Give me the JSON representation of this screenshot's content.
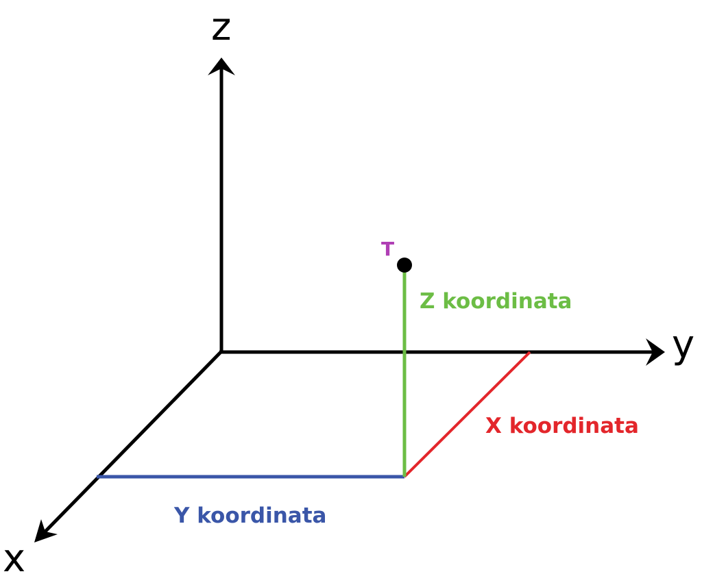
{
  "axes": {
    "x_label": "x",
    "y_label": "y",
    "z_label": "z"
  },
  "point": {
    "label": "T"
  },
  "coordinates": {
    "x_label": "X koordinata",
    "y_label": "Y koordinata",
    "z_label": "Z koordinata"
  },
  "colors": {
    "axes": "#000000",
    "x_coordinate": "#e3262b",
    "y_coordinate": "#3a56a8",
    "z_coordinate": "#6cbd45",
    "point_label": "#b03fb5"
  }
}
